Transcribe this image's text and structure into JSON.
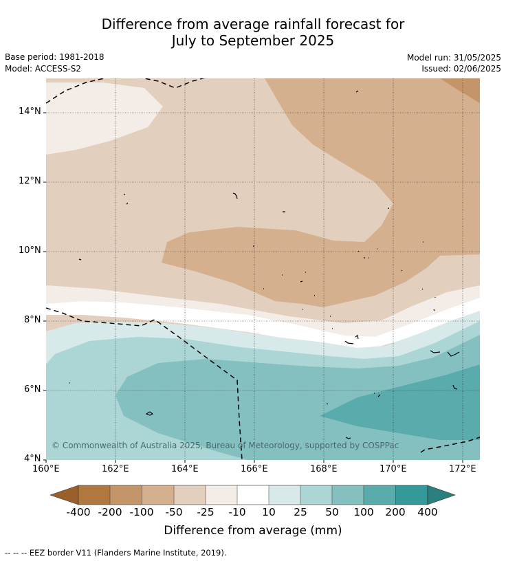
{
  "header": {
    "title_line1": "Difference from average rainfall forecast for",
    "title_line2": "July to September 2025",
    "base_period": "Base period: 1981-2018",
    "model": "Model: ACCESS-S2",
    "model_run": "Model run: 31/05/2025",
    "issued": "Issued: 02/06/2025"
  },
  "map": {
    "lat_ticks": [
      "14°N",
      "12°N",
      "10°N",
      "8°N",
      "6°N",
      "4°N"
    ],
    "lon_ticks": [
      "160°E",
      "162°E",
      "164°E",
      "166°E",
      "168°E",
      "170°E",
      "172°E"
    ],
    "copyright": "© Commonwealth of Australia 2025, Bureau of Meteorology, supported by COSPPac"
  },
  "colorbar": {
    "labels": [
      "-400",
      "-200",
      "-100",
      "-50",
      "-25",
      "-10",
      "10",
      "25",
      "50",
      "100",
      "200",
      "400"
    ],
    "colors": [
      "#9b5f2c",
      "#b0773f",
      "#c49568",
      "#d4b08f",
      "#e3cfbd",
      "#f4ece6",
      "#ffffff",
      "#d7e9e8",
      "#acd5d5",
      "#84c0c0",
      "#5aabab",
      "#339999",
      "#2a7f7f"
    ],
    "title": "Difference from average (mm)"
  },
  "footer": {
    "eez_legend": "--  --  -- EEZ border V11 (Flanders Marine Institute, 2019)."
  }
}
